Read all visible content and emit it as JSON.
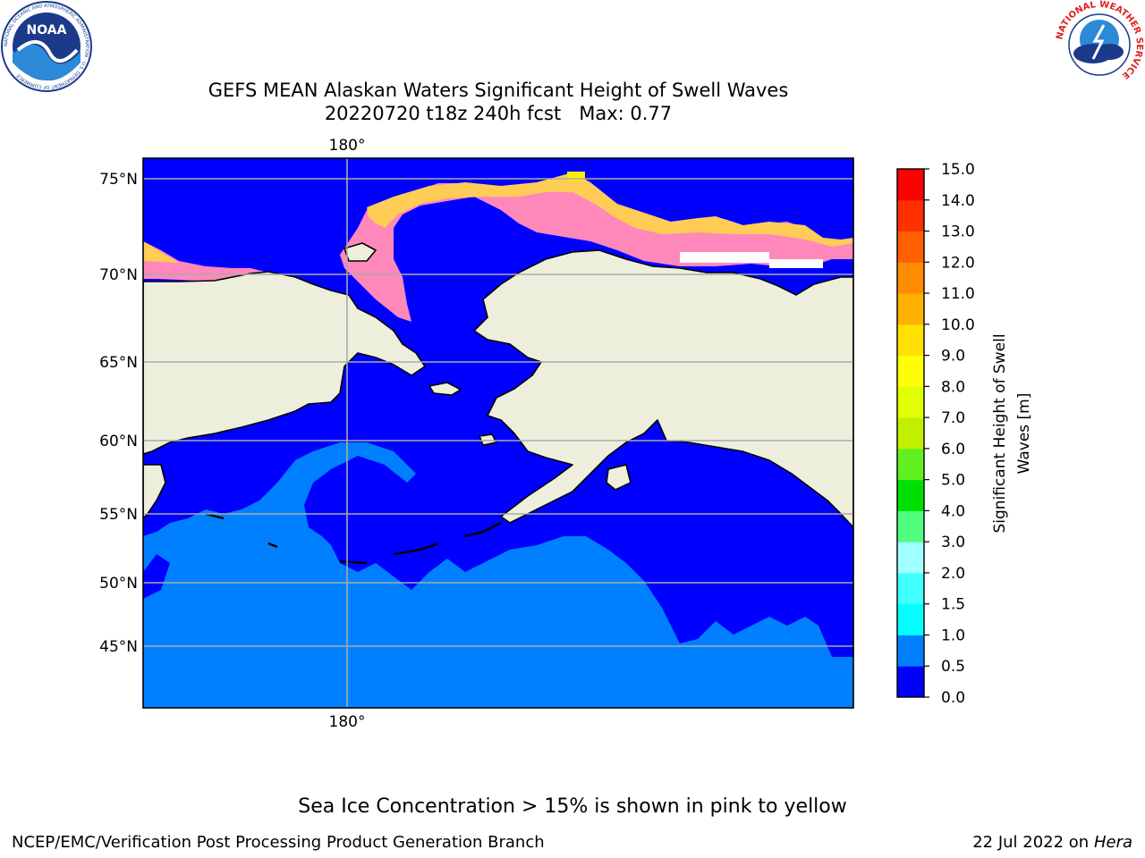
{
  "logos": {
    "noaa": {
      "emblem_text": "NOAA",
      "ring_text": "NATIONAL OCEANIC AND ATMOSPHERIC ADMINISTRATION · U.S. DEPARTMENT OF COMMERCE"
    },
    "nws": {
      "ring_text": "NATIONAL WEATHER SERVICE"
    }
  },
  "title": {
    "line1": "GEFS MEAN Alaskan Waters Significant Height of Swell Waves",
    "line2": "20220720 t18z 240h fcst   Max: 0.77"
  },
  "map": {
    "top_lon_label": "180°",
    "bottom_lon_label": "180°",
    "lat_labels": [
      "75°N",
      "70°N",
      "65°N",
      "60°N",
      "55°N",
      "50°N",
      "45°N"
    ],
    "colors": {
      "land": "#eeeedd",
      "coastline": "#000000",
      "gridline": "#aaaaaa",
      "swell_0_0p5": "#0000ff",
      "swell_0p5_1": "#0080ff",
      "sea_ice_low": "#ff44ff",
      "sea_ice_mid": "#ff88bb",
      "sea_ice_high": "#ffcc55",
      "sea_ice_max": "#ffee00"
    }
  },
  "colorbar": {
    "label_line1": "Significant Height of Swell",
    "label_line2": "Waves [m]",
    "ticks": [
      "0.0",
      "0.5",
      "1.0",
      "1.5",
      "2.0",
      "3.0",
      "4.0",
      "5.0",
      "6.0",
      "7.0",
      "8.0",
      "9.0",
      "10.0",
      "11.0",
      "12.0",
      "13.0",
      "14.0",
      "15.0"
    ],
    "colors": [
      "#0000ff",
      "#0080ff",
      "#00ffff",
      "#40ffff",
      "#a0ffff",
      "#50ff80",
      "#00e000",
      "#60f020",
      "#c0f000",
      "#e0ff00",
      "#ffff00",
      "#ffe000",
      "#ffb000",
      "#ff8c00",
      "#ff6000",
      "#ff3000",
      "#ff0000"
    ]
  },
  "footnote": "Sea Ice Concentration > 15% is shown in pink to yellow",
  "credit": "NCEP/EMC/Verification Post Processing Product Generation Branch",
  "date_prefix": "22 Jul 2022 on ",
  "date_machine": "Hera"
}
